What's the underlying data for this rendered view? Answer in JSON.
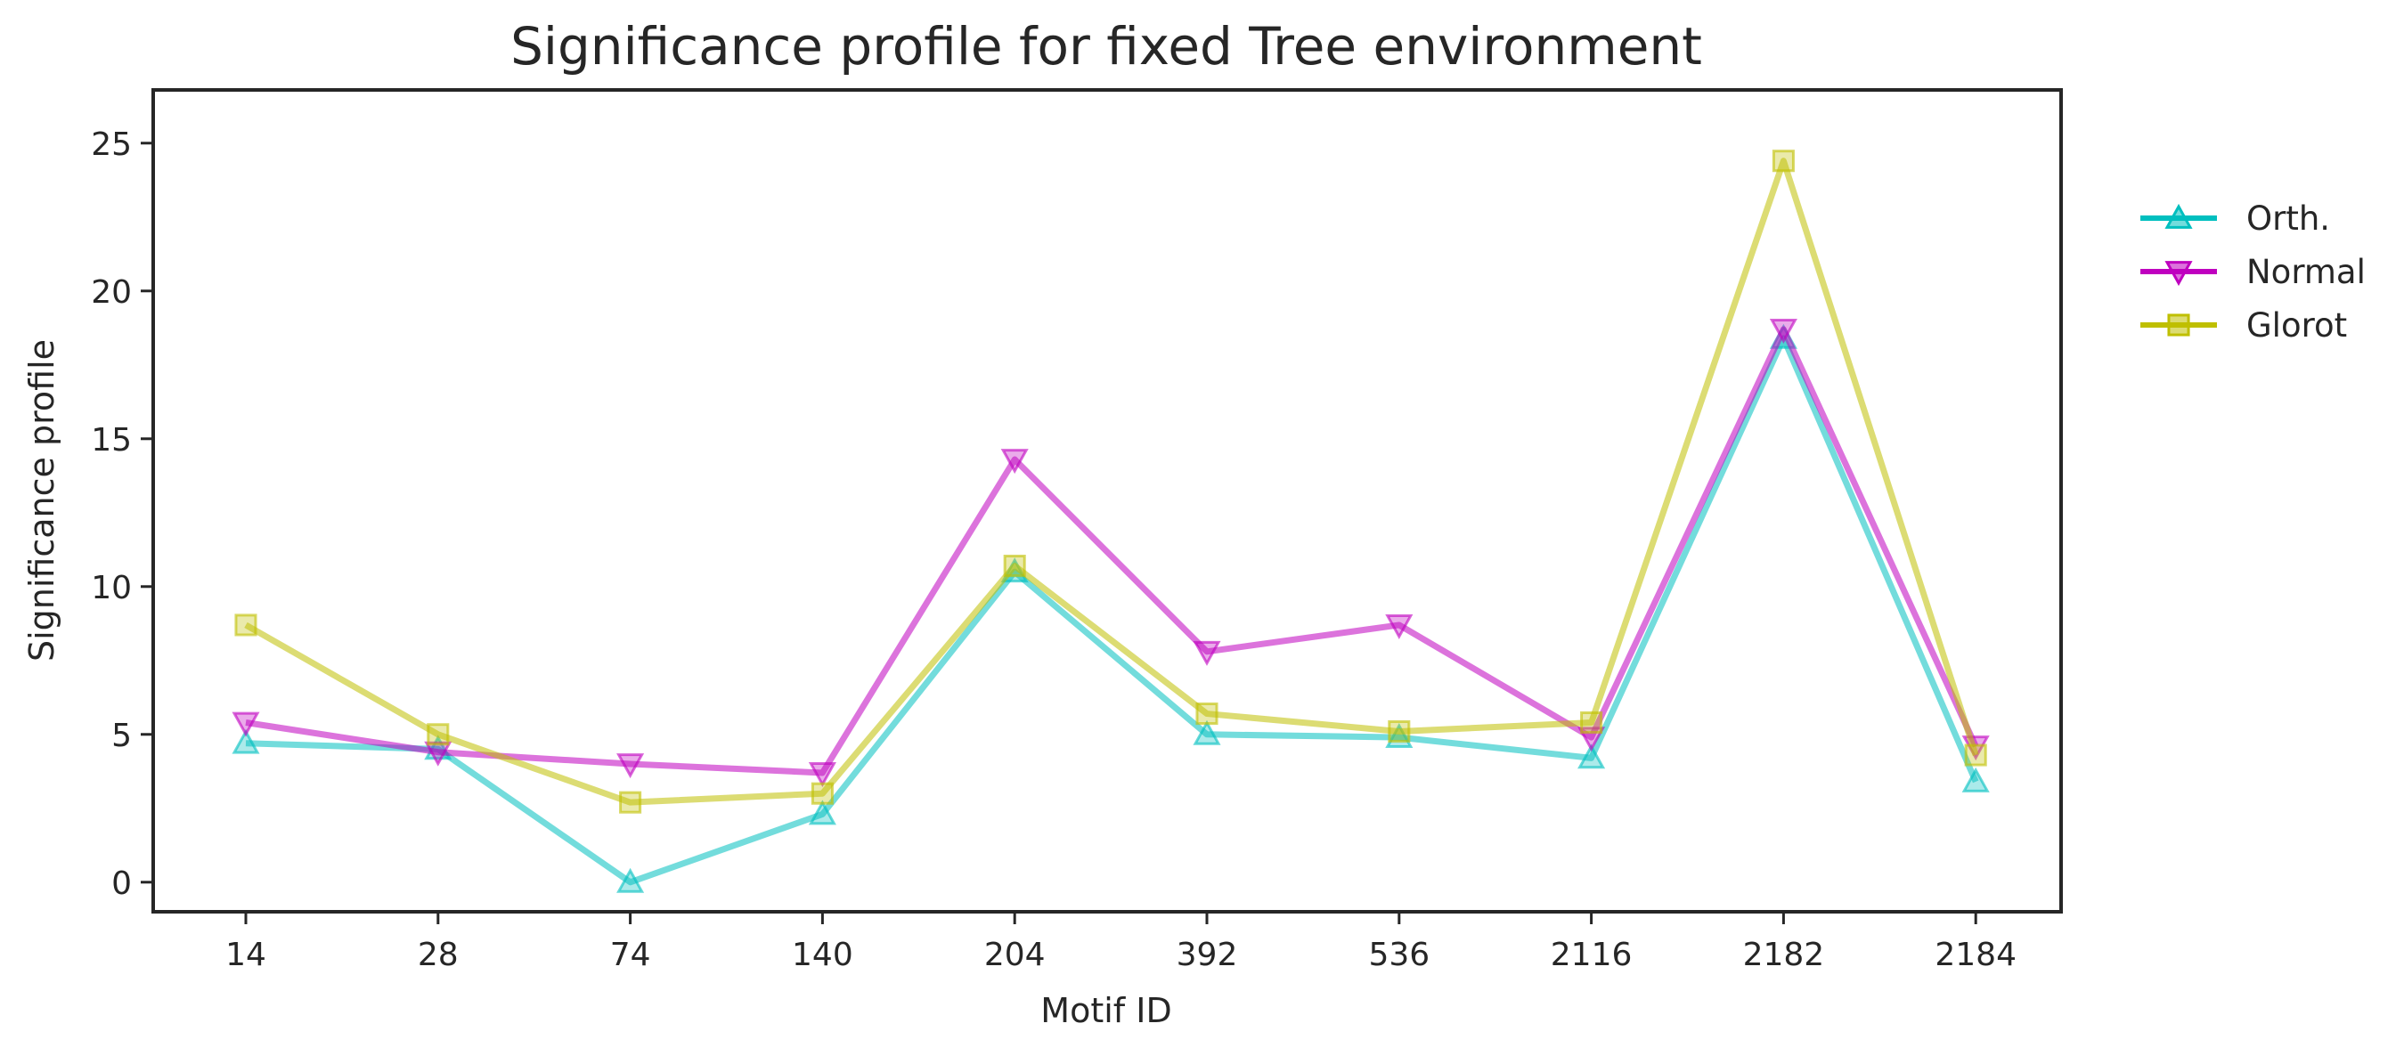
{
  "chart_data": {
    "type": "line",
    "title": "Significance profile for fixed Tree environment",
    "xlabel": "Motif ID",
    "ylabel": "Significance profile",
    "categories": [
      "14",
      "28",
      "74",
      "140",
      "204",
      "392",
      "536",
      "2116",
      "2182",
      "2184"
    ],
    "ylim": [
      -1,
      26.8
    ],
    "yticks": [
      0,
      5,
      10,
      15,
      20,
      25
    ],
    "grid": false,
    "legend_position": "right, outside plot",
    "series": [
      {
        "name": "Orth.",
        "marker": "triangle-up",
        "color": "#00bfbf",
        "values": [
          4.7,
          4.5,
          0.0,
          2.3,
          10.5,
          5.0,
          4.9,
          4.2,
          18.4,
          3.4
        ]
      },
      {
        "name": "Normal",
        "marker": "triangle-down",
        "color": "#bf00bf",
        "values": [
          5.4,
          4.4,
          4.0,
          3.7,
          14.3,
          7.8,
          8.7,
          4.9,
          18.7,
          4.6
        ]
      },
      {
        "name": "Glorot",
        "marker": "square",
        "color": "#bfbf00",
        "values": [
          8.7,
          5.0,
          2.7,
          3.0,
          10.7,
          5.7,
          5.1,
          5.4,
          24.4,
          4.3
        ]
      }
    ]
  }
}
